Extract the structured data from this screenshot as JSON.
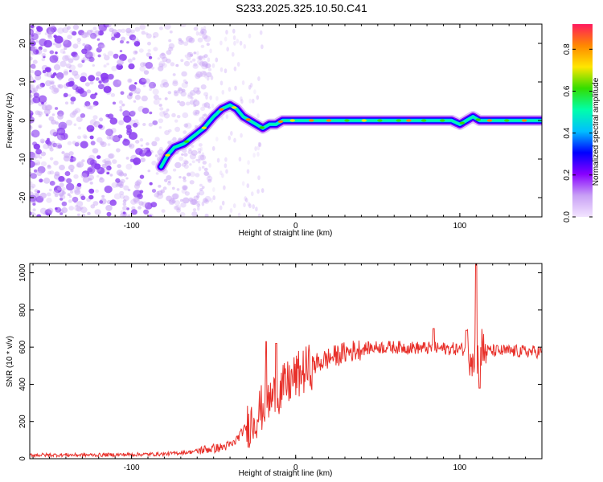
{
  "title": "S233.2025.325.10.50.C41",
  "colors": {
    "line": "#e8302a",
    "noise": "#8a3cf0",
    "noise_light": "#c9a6f5",
    "colormap": [
      "#f2e4ff",
      "#c8a0f5",
      "#8800ff",
      "#0000ff",
      "#00bfff",
      "#00ffaa",
      "#33dd00",
      "#ffe600",
      "#ff8800",
      "#ff1a5e"
    ]
  },
  "chart_data": [
    {
      "type": "heatmap",
      "name": "spectrogram",
      "xlabel": "Height of straight line (km)",
      "ylabel": "Frequency (Hz)",
      "xlim": [
        -162,
        150
      ],
      "ylim": [
        -25,
        25
      ],
      "xticks": [
        -100,
        0,
        100
      ],
      "xtick_labels": [
        "-100",
        "0",
        "100"
      ],
      "yticks": [
        -20,
        -10,
        0,
        10,
        20
      ],
      "ytick_labels": [
        "-20",
        "-10",
        "0",
        "10",
        "20"
      ],
      "colorbar": {
        "label": "Normalized spectral amplitude",
        "range": [
          0,
          0.92
        ],
        "ticks": [
          0,
          0.2,
          0.4,
          0.6,
          0.8
        ],
        "tick_labels": [
          "0.0",
          "0.2",
          "0.4",
          "0.6",
          "0.8"
        ]
      },
      "ridge": {
        "x": [
          -82,
          -78,
          -74,
          -68,
          -62,
          -56,
          -50,
          -45,
          -40,
          -36,
          -32,
          -28,
          -24,
          -20,
          -16,
          -12,
          -8,
          -4,
          0,
          10,
          20,
          40,
          60,
          80,
          95,
          100,
          104,
          108,
          112,
          120,
          140,
          150
        ],
        "y": [
          -12,
          -9,
          -7,
          -6,
          -4,
          -2,
          1,
          3,
          4,
          3,
          1,
          0,
          -1,
          -2,
          -1,
          -1,
          0,
          0,
          0,
          0,
          0,
          0,
          0,
          0,
          0,
          -1,
          0,
          1,
          0,
          0,
          0,
          0
        ]
      }
    },
    {
      "type": "line",
      "name": "snr",
      "xlabel": "Height of straight line (km)",
      "ylabel": "SNR (10 * v/v)",
      "xlim": [
        -162,
        150
      ],
      "ylim": [
        0,
        1050
      ],
      "xticks": [
        -100,
        0,
        100
      ],
      "xtick_labels": [
        "-100",
        "0",
        "100"
      ],
      "yticks": [
        0,
        200,
        400,
        600,
        800,
        1000
      ],
      "ytick_labels": [
        "0",
        "200",
        "400",
        "600",
        "800",
        "1000"
      ],
      "trend": {
        "x": [
          -162,
          -120,
          -80,
          -65,
          -55,
          -45,
          -38,
          -32,
          -25,
          -20,
          -15,
          -10,
          -5,
          0,
          10,
          20,
          30,
          40,
          50,
          60,
          80,
          100,
          110,
          120,
          150
        ],
        "y": [
          20,
          20,
          25,
          35,
          50,
          60,
          80,
          150,
          220,
          280,
          320,
          360,
          400,
          440,
          500,
          540,
          570,
          590,
          600,
          600,
          595,
          590,
          580,
          580,
          575
        ]
      },
      "spikes": [
        {
          "x": -18,
          "y": 630
        },
        {
          "x": -12,
          "y": 620
        },
        {
          "x": 84,
          "y": 700
        },
        {
          "x": 104,
          "y": 690
        },
        {
          "x": 110,
          "y": 1050
        },
        {
          "x": 112,
          "y": 380
        }
      ]
    }
  ]
}
